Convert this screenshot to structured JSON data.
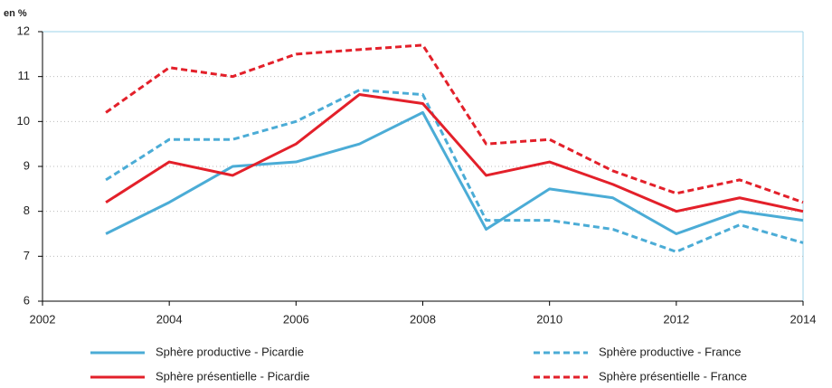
{
  "chart_data": {
    "type": "line",
    "y_label": "en %",
    "x": [
      2003,
      2004,
      2005,
      2006,
      2007,
      2008,
      2009,
      2010,
      2011,
      2012,
      2013,
      2014
    ],
    "xlim": [
      2002,
      2014
    ],
    "xticks": [
      2002,
      2004,
      2006,
      2008,
      2010,
      2012,
      2014
    ],
    "ylim": [
      6,
      12
    ],
    "yticks": [
      6,
      7,
      8,
      9,
      10,
      11,
      12
    ],
    "grid": true,
    "series": [
      {
        "name": "Sphère productive - Picardie",
        "color": "#4bacd6",
        "dashed": false,
        "values": [
          7.5,
          8.2,
          9.0,
          9.1,
          9.5,
          10.2,
          7.6,
          8.5,
          8.3,
          7.5,
          8.0,
          7.8
        ]
      },
      {
        "name": "Sphère productive - France",
        "color": "#4bacd6",
        "dashed": true,
        "values": [
          8.7,
          9.6,
          9.6,
          10.0,
          10.7,
          10.6,
          7.8,
          7.8,
          7.6,
          7.1,
          7.7,
          7.3
        ]
      },
      {
        "name": "Sphère présentielle - Picardie",
        "color": "#e3202a",
        "dashed": false,
        "values": [
          8.2,
          9.1,
          8.8,
          9.5,
          10.6,
          10.4,
          8.8,
          9.1,
          8.6,
          8.0,
          8.3,
          8.0
        ]
      },
      {
        "name": "Sphère présentielle - France",
        "color": "#e3202a",
        "dashed": true,
        "values": [
          10.2,
          11.2,
          11.0,
          11.5,
          11.6,
          11.7,
          9.5,
          9.6,
          8.9,
          8.4,
          8.7,
          8.2
        ]
      }
    ]
  }
}
